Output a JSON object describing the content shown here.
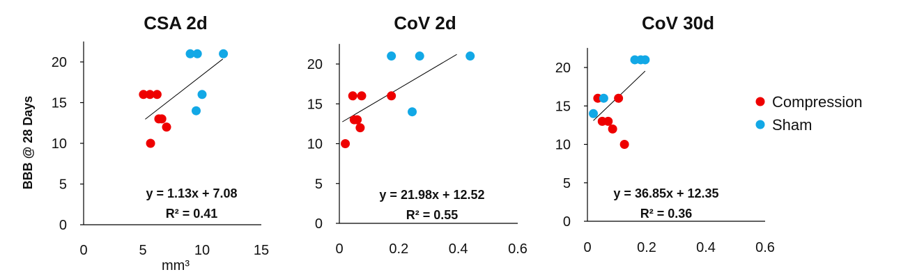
{
  "figure": {
    "ylabel": "BBB @ 28 Days",
    "legend": [
      {
        "name": "Compression",
        "color": "#ee0000"
      },
      {
        "name": "Sham",
        "color": "#12a8e6"
      }
    ]
  },
  "chart_data": [
    {
      "type": "scatter",
      "title": "CSA 2d",
      "xlabel": "mm³",
      "ylabel": "BBB @ 28 Days",
      "xlim": [
        0,
        15
      ],
      "ylim": [
        0,
        22
      ],
      "xticks": [
        "0",
        "5",
        "10",
        "15"
      ],
      "xtick_values": [
        0,
        5,
        10,
        15
      ],
      "yticks": [
        "0",
        "5",
        "10",
        "15",
        "20"
      ],
      "ytick_values": [
        0,
        5,
        10,
        15,
        20
      ],
      "series": [
        {
          "name": "Compression",
          "color": "#ee0000",
          "points": [
            [
              5.05,
              16
            ],
            [
              5.6,
              16
            ],
            [
              6.2,
              16
            ],
            [
              6.35,
              13
            ],
            [
              6.6,
              13
            ],
            [
              7.0,
              12
            ],
            [
              5.65,
              10
            ]
          ]
        },
        {
          "name": "Sham",
          "color": "#12a8e6",
          "points": [
            [
              9.0,
              21
            ],
            [
              9.6,
              21
            ],
            [
              11.8,
              21
            ],
            [
              10.0,
              16
            ],
            [
              9.5,
              14
            ]
          ]
        }
      ],
      "trendline": {
        "x_range": [
          5.2,
          11.75
        ],
        "slope": 1.13,
        "intercept": 7.08
      },
      "equation": "y = 1.13x + 7.08",
      "r2": "R² = 0.41"
    },
    {
      "type": "scatter",
      "title": "CoV 2d",
      "xlabel": "",
      "ylabel": "BBB @ 28 Days",
      "xlim": [
        0,
        0.6
      ],
      "ylim": [
        0,
        22
      ],
      "xticks": [
        "0",
        "0.2",
        "0.4",
        "0.6"
      ],
      "xtick_values": [
        0,
        0.2,
        0.4,
        0.6
      ],
      "yticks": [
        "0",
        "5",
        "10",
        "15",
        "20"
      ],
      "ytick_values": [
        0,
        5,
        10,
        15,
        20
      ],
      "series": [
        {
          "name": "Compression",
          "color": "#ee0000",
          "points": [
            [
              0.045,
              16
            ],
            [
              0.075,
              16
            ],
            [
              0.175,
              16
            ],
            [
              0.05,
              13
            ],
            [
              0.06,
              13
            ],
            [
              0.07,
              12
            ],
            [
              0.02,
              10
            ]
          ]
        },
        {
          "name": "Sham",
          "color": "#12a8e6",
          "points": [
            [
              0.175,
              21
            ],
            [
              0.27,
              21
            ],
            [
              0.44,
              21
            ],
            [
              0.245,
              14
            ]
          ]
        }
      ],
      "trendline": {
        "x_range": [
          0.01,
          0.395
        ],
        "slope": 21.98,
        "intercept": 12.52
      },
      "equation": "y = 21.98x + 12.52",
      "r2": "R² = 0.55"
    },
    {
      "type": "scatter",
      "title": "CoV 30d",
      "xlabel": "",
      "ylabel": "BBB @ 28 Days",
      "xlim": [
        0,
        0.6
      ],
      "ylim": [
        0,
        22
      ],
      "xticks": [
        "0",
        "0.2",
        "0.4",
        "0.6"
      ],
      "xtick_values": [
        0,
        0.2,
        0.4,
        0.6
      ],
      "yticks": [
        "0",
        "5",
        "10",
        "15",
        "20"
      ],
      "ytick_values": [
        0,
        5,
        10,
        15,
        20
      ],
      "series": [
        {
          "name": "Compression",
          "color": "#ee0000",
          "points": [
            [
              0.035,
              16
            ],
            [
              0.105,
              16
            ],
            [
              0.05,
              13
            ],
            [
              0.07,
              13
            ],
            [
              0.085,
              12
            ],
            [
              0.125,
              10
            ]
          ]
        },
        {
          "name": "Sham",
          "color": "#12a8e6",
          "points": [
            [
              0.055,
              16
            ],
            [
              0.02,
              14
            ],
            [
              0.16,
              21
            ],
            [
              0.18,
              21
            ],
            [
              0.195,
              21
            ]
          ]
        }
      ],
      "trendline": {
        "x_range": [
          0.02,
          0.195
        ],
        "slope": 36.85,
        "intercept": 12.35
      },
      "equation": "y = 36.85x + 12.35",
      "r2": "R² = 0.36"
    }
  ]
}
